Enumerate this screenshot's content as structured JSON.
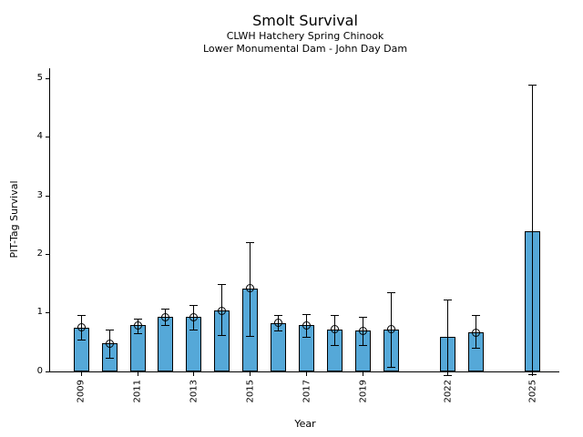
{
  "figure": {
    "title": "Smolt Survival",
    "subtitle_line1": "CLWH Hatchery Spring Chinook",
    "subtitle_line2": "Lower Monumental Dam - John Day Dam"
  },
  "chart_data": {
    "type": "bar",
    "title": "Smolt Survival",
    "subtitles": [
      "CLWH Hatchery Spring Chinook",
      "Lower Monumental Dam - John Day Dam"
    ],
    "xlabel": "Year",
    "ylabel": "PIT-Tag Survival",
    "xlim": [
      2007.9,
      2025.95
    ],
    "ylim": [
      0,
      5.17
    ],
    "yticks": [
      0,
      1,
      2,
      3,
      4,
      5
    ],
    "xtick_years": [
      2009,
      2011,
      2013,
      2015,
      2017,
      2019,
      2022,
      2025
    ],
    "grid": false,
    "legend": null,
    "bar_color": "#55A8D8",
    "bar_edge_color": "#000000",
    "error_bar_color": "#000000",
    "points": [
      {
        "year": 2009,
        "value": 0.74,
        "ci_low": 0.53,
        "ci_high": 0.95,
        "marker": true
      },
      {
        "year": 2010,
        "value": 0.47,
        "ci_low": 0.22,
        "ci_high": 0.7,
        "marker": true
      },
      {
        "year": 2011,
        "value": 0.78,
        "ci_low": 0.65,
        "ci_high": 0.9,
        "marker": true
      },
      {
        "year": 2012,
        "value": 0.92,
        "ci_low": 0.78,
        "ci_high": 1.06,
        "marker": true
      },
      {
        "year": 2013,
        "value": 0.92,
        "ci_low": 0.7,
        "ci_high": 1.13,
        "marker": true
      },
      {
        "year": 2014,
        "value": 1.03,
        "ci_low": 0.61,
        "ci_high": 1.49,
        "marker": true
      },
      {
        "year": 2015,
        "value": 1.41,
        "ci_low": 0.6,
        "ci_high": 2.2,
        "marker": true
      },
      {
        "year": 2016,
        "value": 0.82,
        "ci_low": 0.69,
        "ci_high": 0.96,
        "marker": true
      },
      {
        "year": 2017,
        "value": 0.78,
        "ci_low": 0.59,
        "ci_high": 0.97,
        "marker": true
      },
      {
        "year": 2018,
        "value": 0.71,
        "ci_low": 0.44,
        "ci_high": 0.95,
        "marker": true
      },
      {
        "year": 2019,
        "value": 0.69,
        "ci_low": 0.45,
        "ci_high": 0.92,
        "marker": true
      },
      {
        "year": 2020,
        "value": 0.71,
        "ci_low": 0.07,
        "ci_high": 1.34,
        "marker": true
      },
      {
        "year": 2022,
        "value": 0.59,
        "ci_low": -0.07,
        "ci_high": 1.22,
        "marker": false
      },
      {
        "year": 2023,
        "value": 0.66,
        "ci_low": 0.39,
        "ci_high": 0.96,
        "marker": true
      },
      {
        "year": 2025,
        "value": 2.39,
        "ci_low": -0.05,
        "ci_high": 4.89,
        "marker": false
      }
    ]
  }
}
